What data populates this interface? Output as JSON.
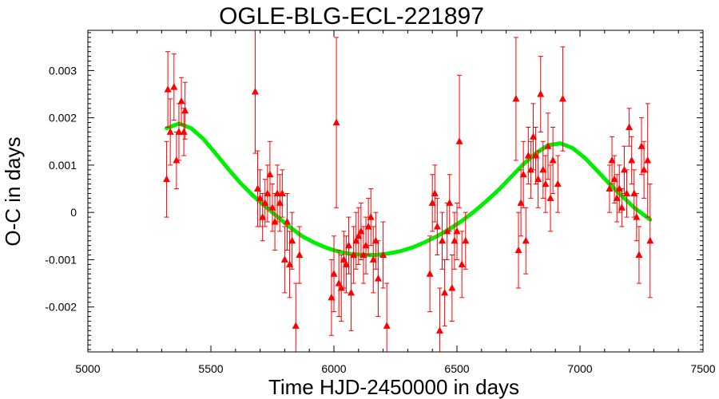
{
  "chart_data": {
    "type": "scatter",
    "title": "OGLE-BLG-ECL-221897",
    "xlabel": "Time HJD-2450000 in days",
    "ylabel": "O-C in days",
    "xlim": [
      5000,
      7500
    ],
    "ylim": [
      -0.00295,
      0.00385
    ],
    "xticks": [
      5000,
      5500,
      6000,
      6500,
      7000,
      7500
    ],
    "xtick_labels": [
      "5000",
      "5500",
      "6000",
      "6500",
      "7000",
      "7500"
    ],
    "yticks": [
      -0.002,
      -0.001,
      0,
      0.001,
      0.002,
      0.003
    ],
    "ytick_labels": [
      "-0.002",
      "-0.001",
      "0",
      "0.001",
      "0.002",
      "0.003"
    ],
    "grid": false,
    "legend": "none",
    "colors": {
      "points": "#ff0000",
      "fit": "#00ee00"
    },
    "series": [
      {
        "kind": "points-with-errorbars",
        "points": [
          {
            "x": 5320,
            "y": 0.0007,
            "err": 0.0008
          },
          {
            "x": 5325,
            "y": 0.0026,
            "err": 0.0008
          },
          {
            "x": 5335,
            "y": 0.0017,
            "err": 0.0007
          },
          {
            "x": 5350,
            "y": 0.00265,
            "err": 0.0007
          },
          {
            "x": 5360,
            "y": 0.0011,
            "err": 0.0006
          },
          {
            "x": 5370,
            "y": 0.0017,
            "err": 0.0006
          },
          {
            "x": 5380,
            "y": 0.00235,
            "err": 0.0005
          },
          {
            "x": 5390,
            "y": 0.0017,
            "err": 0.0005
          },
          {
            "x": 5395,
            "y": 0.00215,
            "err": 0.0006
          },
          {
            "x": 5680,
            "y": 0.00255,
            "err": 0.0013
          },
          {
            "x": 5690,
            "y": 0.0005,
            "err": 0.0008
          },
          {
            "x": 5700,
            "y": 0.0003,
            "err": 0.0006
          },
          {
            "x": 5710,
            "y": -0.0001,
            "err": 0.0005
          },
          {
            "x": 5720,
            "y": 0.0002,
            "err": 0.0005
          },
          {
            "x": 5730,
            "y": 0.0004,
            "err": 0.0006
          },
          {
            "x": 5740,
            "y": 0.0008,
            "err": 0.0007
          },
          {
            "x": 5750,
            "y": 0.0001,
            "err": 0.0005
          },
          {
            "x": 5760,
            "y": -0.0002,
            "err": 0.0006
          },
          {
            "x": 5770,
            "y": 0.0004,
            "err": 0.0006
          },
          {
            "x": 5780,
            "y": 0.0002,
            "err": 0.0006
          },
          {
            "x": 5790,
            "y": 0.0004,
            "err": 0.0005
          },
          {
            "x": 5800,
            "y": -0.001,
            "err": 0.0007
          },
          {
            "x": 5810,
            "y": -0.0002,
            "err": 0.0006
          },
          {
            "x": 5820,
            "y": -0.0011,
            "err": 0.0007
          },
          {
            "x": 5830,
            "y": -0.0006,
            "err": 0.0006
          },
          {
            "x": 5845,
            "y": -0.0024,
            "err": 0.0009
          },
          {
            "x": 5860,
            "y": -0.0009,
            "err": 0.0006
          },
          {
            "x": 5990,
            "y": -0.0018,
            "err": 0.0008
          },
          {
            "x": 6000,
            "y": -0.0013,
            "err": 0.0008
          },
          {
            "x": 6010,
            "y": 0.0019,
            "err": 0.0018
          },
          {
            "x": 6020,
            "y": -0.0015,
            "err": 0.0007
          },
          {
            "x": 6030,
            "y": -0.0016,
            "err": 0.0007
          },
          {
            "x": 6040,
            "y": -0.001,
            "err": 0.0006
          },
          {
            "x": 6050,
            "y": -0.0011,
            "err": 0.0006
          },
          {
            "x": 6060,
            "y": -0.0007,
            "err": 0.0006
          },
          {
            "x": 6070,
            "y": -0.0017,
            "err": 0.0008
          },
          {
            "x": 6080,
            "y": -0.0009,
            "err": 0.0006
          },
          {
            "x": 6090,
            "y": -0.0006,
            "err": 0.0006
          },
          {
            "x": 6100,
            "y": -0.0005,
            "err": 0.0006
          },
          {
            "x": 6110,
            "y": -0.0004,
            "err": 0.0006
          },
          {
            "x": 6120,
            "y": -0.0009,
            "err": 0.0006
          },
          {
            "x": 6130,
            "y": -0.0007,
            "err": 0.0006
          },
          {
            "x": 6140,
            "y": -0.0003,
            "err": 0.0006
          },
          {
            "x": 6150,
            "y": -0.0001,
            "err": 0.0006
          },
          {
            "x": 6160,
            "y": -0.001,
            "err": 0.0007
          },
          {
            "x": 6170,
            "y": -0.0006,
            "err": 0.0006
          },
          {
            "x": 6180,
            "y": -0.0014,
            "err": 0.0008
          },
          {
            "x": 6200,
            "y": -0.0009,
            "err": 0.0007
          },
          {
            "x": 6215,
            "y": -0.0024,
            "err": 0.0009
          },
          {
            "x": 6390,
            "y": -0.0013,
            "err": 0.0008
          },
          {
            "x": 6400,
            "y": 0.0002,
            "err": 0.0006
          },
          {
            "x": 6410,
            "y": 0.0004,
            "err": 0.0006
          },
          {
            "x": 6420,
            "y": -0.0003,
            "err": 0.0006
          },
          {
            "x": 6430,
            "y": -0.0025,
            "err": 0.0009
          },
          {
            "x": 6440,
            "y": -0.0006,
            "err": 0.0006
          },
          {
            "x": 6450,
            "y": -0.0017,
            "err": 0.0007
          },
          {
            "x": 6460,
            "y": -0.0004,
            "err": 0.0006
          },
          {
            "x": 6470,
            "y": 0.0002,
            "err": 0.0006
          },
          {
            "x": 6480,
            "y": -0.0016,
            "err": 0.0007
          },
          {
            "x": 6490,
            "y": -0.0006,
            "err": 0.0006
          },
          {
            "x": 6500,
            "y": -0.0004,
            "err": 0.0006
          },
          {
            "x": 6510,
            "y": 0.0015,
            "err": 0.0014
          },
          {
            "x": 6520,
            "y": -0.0011,
            "err": 0.0007
          },
          {
            "x": 6535,
            "y": -0.0006,
            "err": 0.0006
          },
          {
            "x": 6740,
            "y": 0.0024,
            "err": 0.0013
          },
          {
            "x": 6750,
            "y": -0.0008,
            "err": 0.0008
          },
          {
            "x": 6760,
            "y": 0.0002,
            "err": 0.0007
          },
          {
            "x": 6770,
            "y": 0.0008,
            "err": 0.0007
          },
          {
            "x": 6780,
            "y": -0.0006,
            "err": 0.0007
          },
          {
            "x": 6790,
            "y": 0.0012,
            "err": 0.0006
          },
          {
            "x": 6800,
            "y": 0.0009,
            "err": 0.0006
          },
          {
            "x": 6810,
            "y": 0.0016,
            "err": 0.0007
          },
          {
            "x": 6820,
            "y": 0.0012,
            "err": 0.0006
          },
          {
            "x": 6830,
            "y": 0.0007,
            "err": 0.0006
          },
          {
            "x": 6840,
            "y": 0.0025,
            "err": 0.0008
          },
          {
            "x": 6850,
            "y": 0.0009,
            "err": 0.0006
          },
          {
            "x": 6860,
            "y": 0.0006,
            "err": 0.0006
          },
          {
            "x": 6870,
            "y": 0.0014,
            "err": 0.0007
          },
          {
            "x": 6880,
            "y": 0.0003,
            "err": 0.0007
          },
          {
            "x": 6890,
            "y": 0.0011,
            "err": 0.0007
          },
          {
            "x": 6910,
            "y": 0.0006,
            "err": 0.0006
          },
          {
            "x": 6930,
            "y": 0.0024,
            "err": 0.0011
          },
          {
            "x": 7120,
            "y": 0.0005,
            "err": 0.0005
          },
          {
            "x": 7130,
            "y": 0.0011,
            "err": 0.0005
          },
          {
            "x": 7140,
            "y": 0.0007,
            "err": 0.0005
          },
          {
            "x": 7150,
            "y": 0.0003,
            "err": 0.0005
          },
          {
            "x": 7160,
            "y": 0.0005,
            "err": 0.0005
          },
          {
            "x": 7170,
            "y": 0.0001,
            "err": 0.0004
          },
          {
            "x": 7180,
            "y": 0.0009,
            "err": 0.0005
          },
          {
            "x": 7190,
            "y": 0.0004,
            "err": 0.0005
          },
          {
            "x": 7200,
            "y": 0.0018,
            "err": 0.0004
          },
          {
            "x": 7210,
            "y": 0.0011,
            "err": 0.0005
          },
          {
            "x": 7220,
            "y": 0.0004,
            "err": 0.0005
          },
          {
            "x": 7230,
            "y": -0.0001,
            "err": 0.0005
          },
          {
            "x": 7240,
            "y": -0.0009,
            "err": 0.0006
          },
          {
            "x": 7250,
            "y": 0.0014,
            "err": 0.0006
          },
          {
            "x": 7260,
            "y": 0.0009,
            "err": 0.0006
          },
          {
            "x": 7275,
            "y": 0.0011,
            "err": 0.0012
          },
          {
            "x": 7285,
            "y": -0.0006,
            "err": 0.0012
          }
        ]
      },
      {
        "kind": "fit-curve",
        "x": [
          5320,
          5370,
          5420,
          5470,
          5520,
          5570,
          5620,
          5670,
          5720,
          5770,
          5820,
          5870,
          5920,
          5970,
          6020,
          6070,
          6120,
          6170,
          6220,
          6270,
          6320,
          6370,
          6420,
          6470,
          6520,
          6570,
          6620,
          6670,
          6720,
          6770,
          6820,
          6870,
          6920,
          6970,
          7020,
          7070,
          7120,
          7170,
          7220,
          7285
        ],
        "y": [
          0.00178,
          0.00188,
          0.00178,
          0.00155,
          0.00124,
          0.00092,
          0.00062,
          0.00036,
          0.00013,
          -9e-05,
          -0.00031,
          -0.0005,
          -0.00064,
          -0.00075,
          -0.00083,
          -0.00088,
          -0.0009,
          -0.0009,
          -0.00087,
          -0.00082,
          -0.00074,
          -0.00063,
          -0.0005,
          -0.00035,
          -0.00018,
          2e-05,
          0.00024,
          0.00048,
          0.00075,
          0.00102,
          0.00125,
          0.00142,
          0.00146,
          0.00136,
          0.00115,
          0.00088,
          0.0006,
          0.00035,
          0.0001,
          -0.00015
        ]
      }
    ]
  }
}
